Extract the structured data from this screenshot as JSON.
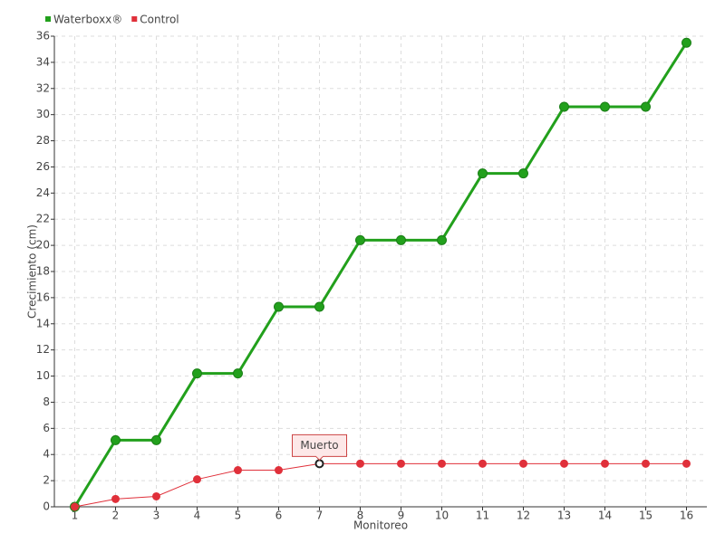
{
  "chart_data": {
    "type": "line",
    "xlabel": "Monitoreo",
    "ylabel": "Crecimiento (cm)",
    "categories": [
      "1",
      "2",
      "3",
      "4",
      "5",
      "6",
      "7",
      "8",
      "9",
      "10",
      "11",
      "12",
      "13",
      "14",
      "15",
      "16"
    ],
    "series": [
      {
        "name": "Waterboxx®",
        "color": "#22a01c",
        "values": [
          0,
          5.1,
          5.1,
          10.2,
          10.2,
          15.3,
          15.3,
          20.4,
          20.4,
          20.4,
          25.5,
          25.5,
          30.6,
          30.6,
          30.6,
          35.5
        ]
      },
      {
        "name": "Control",
        "color": "#e0303a",
        "values": [
          0,
          0.6,
          0.8,
          2.1,
          2.8,
          2.8,
          3.3,
          3.3,
          3.3,
          3.3,
          3.3,
          3.3,
          3.3,
          3.3,
          3.3,
          3.3
        ]
      }
    ],
    "annotation": {
      "text": "Muerto",
      "series": "Control",
      "category": "7"
    },
    "ylim": [
      0,
      36
    ],
    "yticks": [
      0,
      2,
      4,
      6,
      8,
      10,
      12,
      14,
      16,
      18,
      20,
      22,
      24,
      26,
      28,
      30,
      32,
      34,
      36
    ],
    "grid": true,
    "legend": "top-left"
  }
}
